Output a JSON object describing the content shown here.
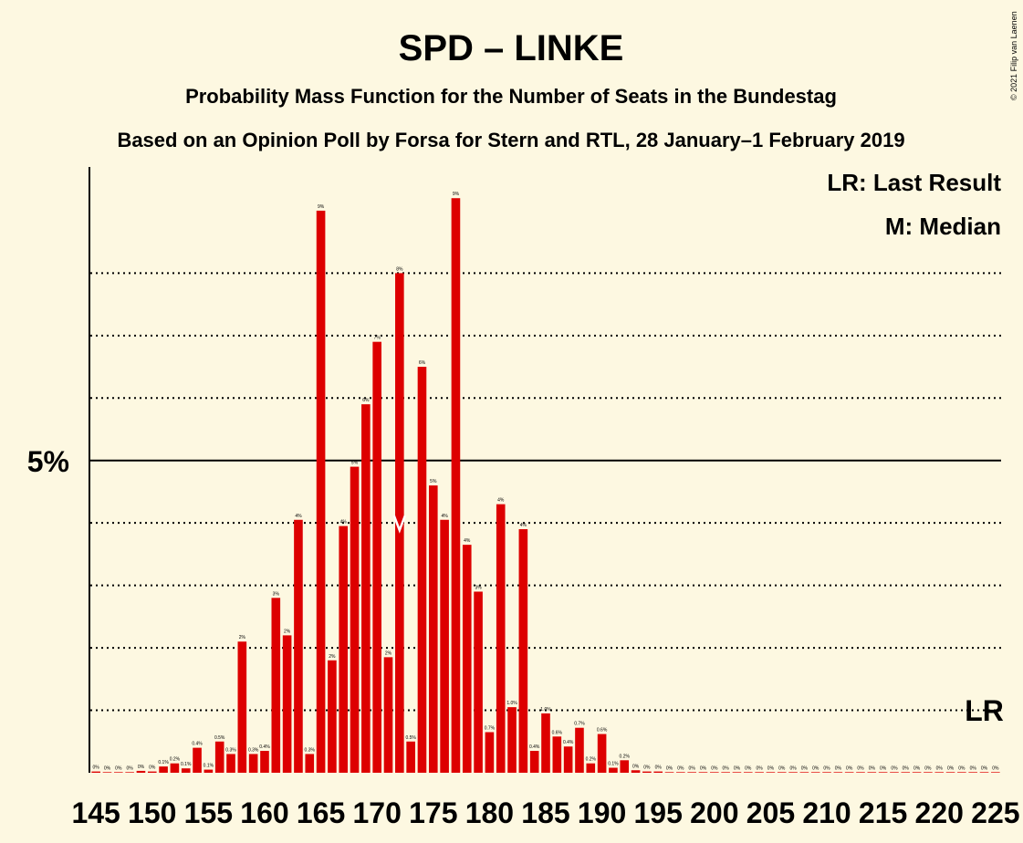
{
  "chart_data": {
    "type": "bar",
    "title": "SPD – LINKE",
    "subtitle": "Probability Mass Function for the Number of Seats in the Bundestag",
    "subtitle2": "Based on an Opinion Poll by Forsa for Stern and RTL, 28 January–1 February 2019",
    "copyright": "© 2021 Filip van Laenen",
    "legend": [
      "LR: Last Result",
      "M: Median"
    ],
    "ylabel_5": "5%",
    "ylim": [
      0,
      9.7
    ],
    "major_gridline": 5,
    "minor_gridlines": [
      1,
      2,
      3,
      4,
      6,
      7,
      8
    ],
    "x_start": 145,
    "x_ticks": [
      "145",
      "150",
      "155",
      "160",
      "165",
      "170",
      "175",
      "180",
      "185",
      "190",
      "195",
      "200",
      "205",
      "210",
      "215",
      "220",
      "225"
    ],
    "x_tick_values": [
      145,
      150,
      155,
      160,
      165,
      170,
      175,
      180,
      185,
      190,
      195,
      200,
      205,
      210,
      215,
      220,
      225
    ],
    "values": [
      0.02,
      0.01,
      0.01,
      0.01,
      0.03,
      0.02,
      0.1,
      0.15,
      0.07,
      0.4,
      0.05,
      0.5,
      0.3,
      2.1,
      0.3,
      0.35,
      2.8,
      2.2,
      4.05,
      0.3,
      9.0,
      1.8,
      3.95,
      4.9,
      5.9,
      6.9,
      1.85,
      8.0,
      0.5,
      6.5,
      4.6,
      4.05,
      9.2,
      3.65,
      2.9,
      0.65,
      4.3,
      1.05,
      3.9,
      0.35,
      0.95,
      0.58,
      0.42,
      0.72,
      0.15,
      0.62,
      0.08,
      0.2,
      0.04,
      0.02,
      0.02,
      0.01,
      0.01,
      0.01,
      0.01,
      0.01,
      0.01,
      0.01,
      0.01,
      0.01,
      0.01,
      0.01,
      0.01,
      0.01,
      0.01,
      0.01,
      0.01,
      0.01,
      0.01,
      0.01,
      0.01,
      0.01,
      0.01,
      0.01,
      0.01,
      0.01,
      0.01,
      0.01,
      0.01,
      0.01,
      0.01
    ],
    "labels": [
      "0%",
      "0%",
      "0%",
      "0%",
      "0%",
      "0%",
      "0.1%",
      "0.2%",
      "0.1%",
      "0.4%",
      "0.1%",
      "0.5%",
      "0.3%",
      "2%",
      "0.3%",
      "0.4%",
      "3%",
      "2%",
      "4%",
      "0.3%",
      "9%",
      "2%",
      "4%",
      "5%",
      "6%",
      "7%",
      "2%",
      "8%",
      "0.5%",
      "6%",
      "5%",
      "4%",
      "9%",
      "4%",
      "3%",
      "0.7%",
      "4%",
      "1.0%",
      "4%",
      "0.4%",
      "1.0%",
      "0.6%",
      "0.4%",
      "0.7%",
      "0.2%",
      "0.6%",
      "0.1%",
      "0.2%",
      "0%",
      "0%",
      "0%",
      "0%",
      "0%",
      "0%",
      "0%",
      "0%",
      "0%",
      "0%",
      "0%",
      "0%",
      "0%",
      "0%",
      "0%",
      "0%",
      "0%",
      "0%",
      "0%",
      "0%",
      "0%",
      "0%",
      "0%",
      "0%",
      "0%",
      "0%",
      "0%",
      "0%",
      "0%",
      "0%",
      "0%",
      "0%",
      "0%"
    ],
    "median_seat": 172,
    "median_marker": "M",
    "last_result_seat": 224,
    "last_result_label": "LR",
    "bar_color": "#dd0000",
    "bar_color_light": "#ff3333",
    "background": "#fdf8e1"
  }
}
